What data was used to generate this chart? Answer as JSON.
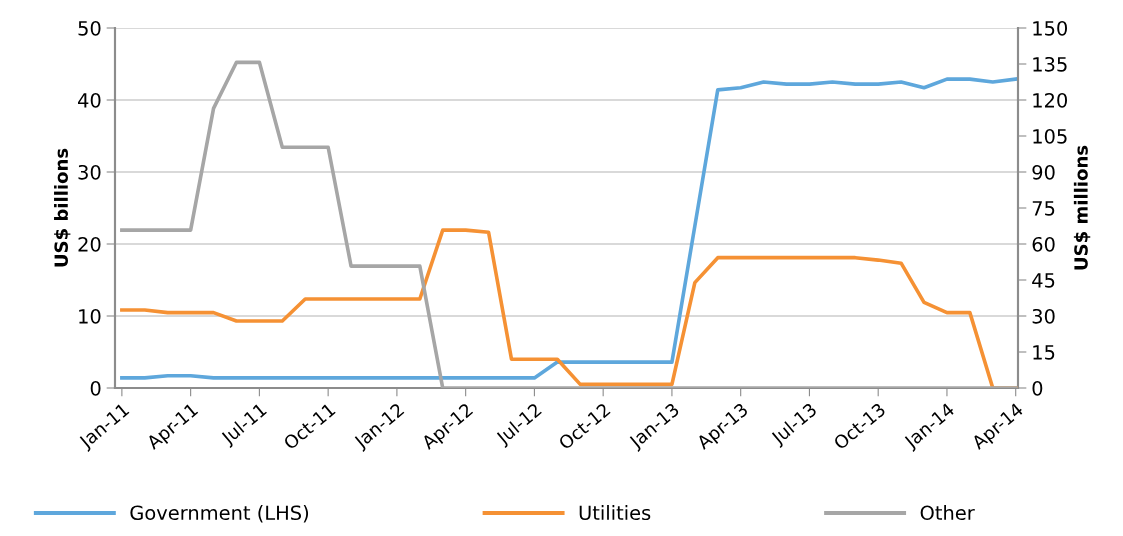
{
  "chart_data": {
    "type": "line",
    "categories": [
      "Jan-11",
      null,
      null,
      "Apr-11",
      null,
      null,
      "Jul-11",
      null,
      null,
      "Oct-11",
      null,
      null,
      "Jan-12",
      null,
      null,
      "Apr-12",
      null,
      null,
      "Jul-12",
      null,
      null,
      "Oct-12",
      null,
      null,
      "Jan-13",
      null,
      null,
      "Apr-13",
      null,
      null,
      "Jul-13",
      null,
      null,
      "Oct-13",
      null,
      null,
      "Jan-14",
      null,
      null,
      "Apr-14"
    ],
    "ylabel": "US$ billions",
    "y2label": "US$ millions",
    "ylim": [
      0,
      50
    ],
    "yticks": [
      0,
      10,
      20,
      30,
      40,
      50
    ],
    "y2lim": [
      0,
      150
    ],
    "y2ticks": [
      0,
      15,
      30,
      45,
      60,
      75,
      90,
      105,
      120,
      135,
      150
    ],
    "grid": "y",
    "legend": "bottom",
    "marker": "none",
    "line_style": "solid",
    "series": [
      {
        "name": "Government (LHS)",
        "color": "#5ea7dc",
        "values": [
          1.4,
          1.4,
          1.7,
          1.7,
          1.4,
          1.4,
          1.4,
          1.4,
          1.4,
          1.4,
          1.4,
          1.4,
          1.4,
          1.4,
          1.4,
          1.4,
          1.4,
          1.4,
          1.4,
          3.6,
          3.6,
          3.6,
          3.6,
          3.6,
          3.6,
          22.5,
          41.4,
          41.7,
          42.5,
          42.2,
          42.2,
          42.5,
          42.2,
          42.2,
          42.5,
          41.7,
          42.9,
          42.9,
          42.5,
          42.9
        ]
      },
      {
        "name": "Utilities",
        "color": "#f59134",
        "axis": "y2",
        "values": [
          32.5,
          32.5,
          31.4,
          31.4,
          31.4,
          27.9,
          27.9,
          27.9,
          37.1,
          37.1,
          37.1,
          37.1,
          37.1,
          37.1,
          65.8,
          65.8,
          64.9,
          12.0,
          12.0,
          12.0,
          1.5,
          1.5,
          1.5,
          1.5,
          1.5,
          43.9,
          54.3,
          54.3,
          54.3,
          54.3,
          54.3,
          54.3,
          54.3,
          53.3,
          52.0,
          35.7,
          31.4,
          31.4,
          0,
          0
        ]
      },
      {
        "name": "Other",
        "color": "#a6a6a6",
        "axis": "y2",
        "values": [
          65.8,
          65.8,
          65.8,
          65.8,
          116.5,
          135.7,
          135.7,
          100.3,
          100.3,
          100.3,
          50.8,
          50.8,
          50.8,
          50.8,
          0,
          0,
          0,
          0,
          0,
          0,
          0,
          0,
          0,
          0,
          0,
          0,
          0,
          0,
          0,
          0,
          0,
          0,
          0,
          0,
          0,
          0,
          0,
          0,
          0,
          0
        ]
      }
    ]
  }
}
